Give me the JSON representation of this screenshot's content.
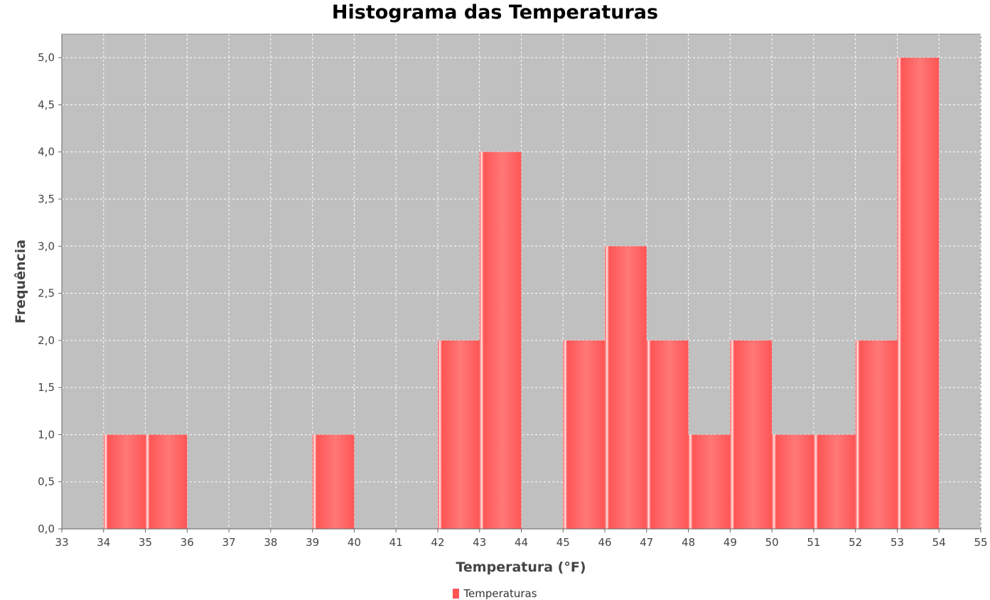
{
  "chart_data": {
    "type": "bar",
    "title": "Histograma das Temperaturas",
    "xlabel": "Temperatura (°F)",
    "ylabel": "Frequência",
    "xlim": [
      33,
      55
    ],
    "ylim": [
      0,
      5.25
    ],
    "x_ticks": [
      "33",
      "34",
      "35",
      "36",
      "37",
      "38",
      "39",
      "40",
      "41",
      "42",
      "43",
      "44",
      "45",
      "46",
      "47",
      "48",
      "49",
      "50",
      "51",
      "52",
      "53",
      "54",
      "55"
    ],
    "y_ticks": [
      "0,0",
      "0,5",
      "1,0",
      "1,5",
      "2,0",
      "2,5",
      "3,0",
      "3,5",
      "4,0",
      "4,5",
      "5,0"
    ],
    "grid": true,
    "legend_position": "bottom",
    "series": [
      {
        "name": "Temperaturas",
        "color": "#ff5555",
        "bins": [
          {
            "start": 34,
            "end": 35,
            "value": 1
          },
          {
            "start": 35,
            "end": 36,
            "value": 1
          },
          {
            "start": 39,
            "end": 40,
            "value": 1
          },
          {
            "start": 42,
            "end": 43,
            "value": 2
          },
          {
            "start": 43,
            "end": 44,
            "value": 4
          },
          {
            "start": 45,
            "end": 46,
            "value": 2
          },
          {
            "start": 46,
            "end": 47,
            "value": 3
          },
          {
            "start": 47,
            "end": 48,
            "value": 2
          },
          {
            "start": 48,
            "end": 49,
            "value": 1
          },
          {
            "start": 49,
            "end": 50,
            "value": 2
          },
          {
            "start": 50,
            "end": 51,
            "value": 1
          },
          {
            "start": 51,
            "end": 52,
            "value": 1
          },
          {
            "start": 52,
            "end": 53,
            "value": 2
          },
          {
            "start": 53,
            "end": 54,
            "value": 5
          }
        ]
      }
    ]
  }
}
